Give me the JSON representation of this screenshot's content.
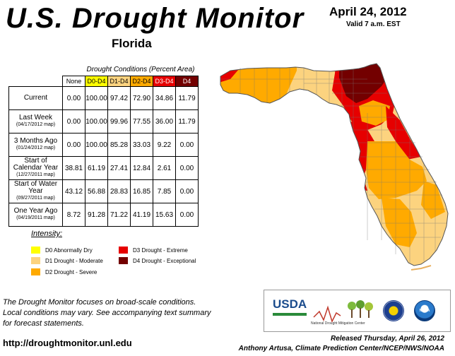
{
  "header": {
    "title": "U.S. Drought Monitor",
    "region": "Florida",
    "date": "April 24, 2012",
    "valid": "Valid 7 a.m. EST"
  },
  "table": {
    "caption": "Drought Conditions (Percent Area)",
    "columns": [
      "None",
      "D0-D4",
      "D1-D4",
      "D2-D4",
      "D3-D4",
      "D4"
    ],
    "rows": [
      {
        "label": "Current",
        "sub": "",
        "values": [
          "0.00",
          "100.00",
          "97.42",
          "72.90",
          "34.86",
          "11.79"
        ]
      },
      {
        "label": "Last Week",
        "sub": "(04/17/2012 map)",
        "values": [
          "0.00",
          "100.00",
          "99.96",
          "77.55",
          "36.00",
          "11.79"
        ]
      },
      {
        "label": "3 Months Ago",
        "sub": "(01/24/2012 map)",
        "values": [
          "0.00",
          "100.00",
          "85.28",
          "33.03",
          "9.22",
          "0.00"
        ]
      },
      {
        "label": "Start of Calendar Year",
        "sub": "(12/27/2011 map)",
        "values": [
          "38.81",
          "61.19",
          "27.41",
          "12.84",
          "2.61",
          "0.00"
        ]
      },
      {
        "label": "Start of Water Year",
        "sub": "(09/27/2011 map)",
        "values": [
          "43.12",
          "56.88",
          "28.83",
          "16.85",
          "7.85",
          "0.00"
        ]
      },
      {
        "label": "One Year Ago",
        "sub": "(04/19/2011 map)",
        "values": [
          "8.72",
          "91.28",
          "71.22",
          "41.19",
          "15.63",
          "0.00"
        ]
      }
    ]
  },
  "legend": {
    "title": "Intensity:",
    "items": [
      {
        "label": "D0 Abnormally Dry",
        "color": "#ffff00"
      },
      {
        "label": "D1 Drought - Moderate",
        "color": "#fcd37f"
      },
      {
        "label": "D2 Drought - Severe",
        "color": "#ffaa00"
      },
      {
        "label": "D3 Drought - Extreme",
        "color": "#e60000"
      },
      {
        "label": "D4 Drought - Exceptional",
        "color": "#730000"
      }
    ]
  },
  "footer": {
    "note_lines": [
      "The Drought Monitor focuses on broad-scale conditions.",
      "Local conditions may vary. See accompanying text summary",
      "for forecast statements."
    ],
    "url": "http://droughtmonitor.unl.edu",
    "released": "Released Thursday, April 26, 2012",
    "author": "Anthony Artusa, Climate Prediction Center/NCEP/NWS/NOAA"
  },
  "logos": {
    "usda": "USDA",
    "ndmc": "National Drought Mitigation Center",
    "noaa": "NOAA"
  }
}
